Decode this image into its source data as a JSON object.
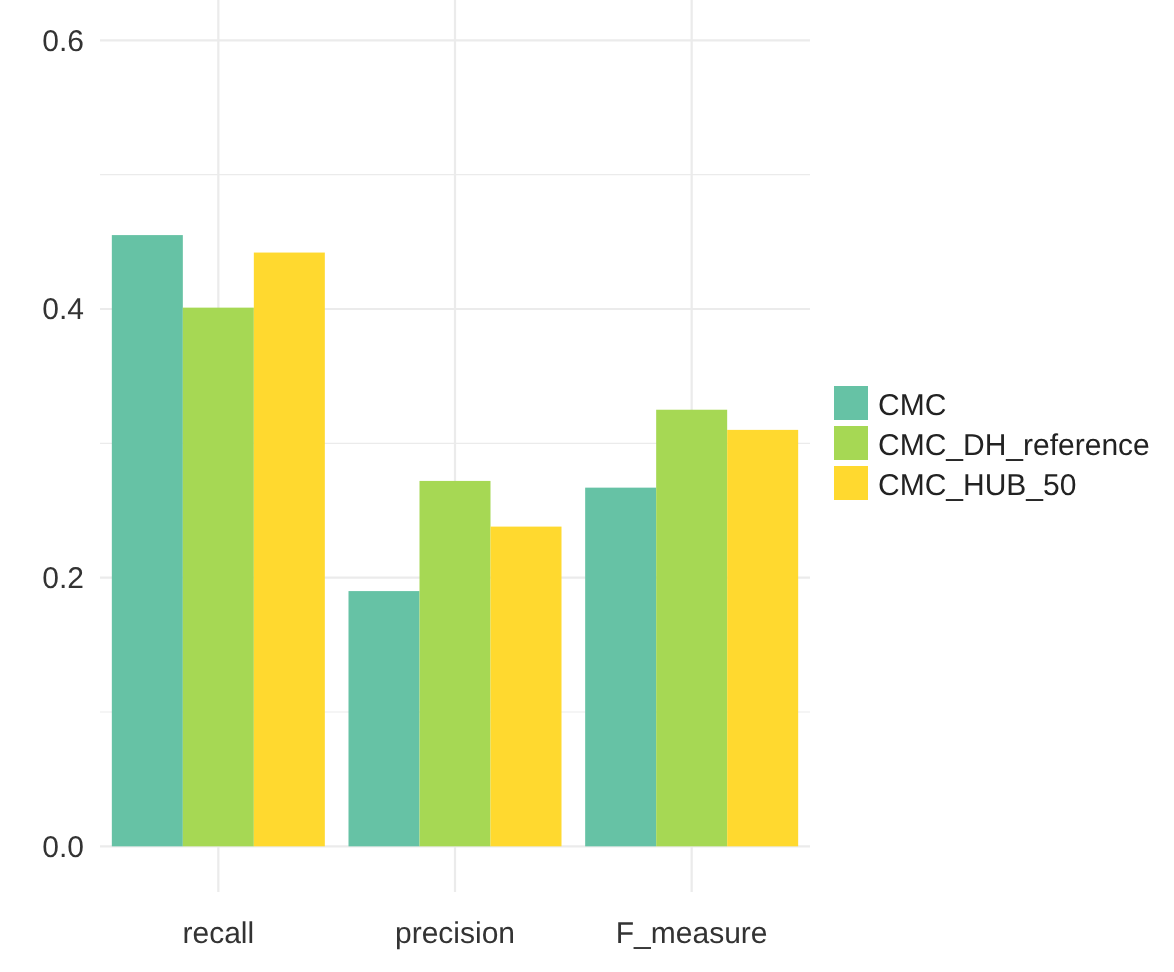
{
  "chart_data": {
    "type": "bar",
    "categories": [
      "recall",
      "precision",
      "F_measure"
    ],
    "series": [
      {
        "name": "CMC",
        "color": "#66c2a5",
        "values": [
          0.455,
          0.19,
          0.267
        ]
      },
      {
        "name": "CMC_DH_reference",
        "color": "#a6d854",
        "values": [
          0.401,
          0.272,
          0.325
        ]
      },
      {
        "name": "CMC_HUB_50",
        "color": "#ffd92f",
        "values": [
          0.442,
          0.238,
          0.31
        ]
      }
    ],
    "ylim": [
      -0.034,
      0.63
    ],
    "yticks": [
      {
        "value": 0,
        "label": "0.0"
      },
      {
        "value": 0.1,
        "label": null
      },
      {
        "value": 0.2,
        "label": "0.2"
      },
      {
        "value": 0.3,
        "label": null
      },
      {
        "value": 0.4,
        "label": "0.4"
      },
      {
        "value": 0.5,
        "label": null
      },
      {
        "value": 0.6,
        "label": "0.6"
      }
    ],
    "grid": true,
    "legend": "right"
  }
}
